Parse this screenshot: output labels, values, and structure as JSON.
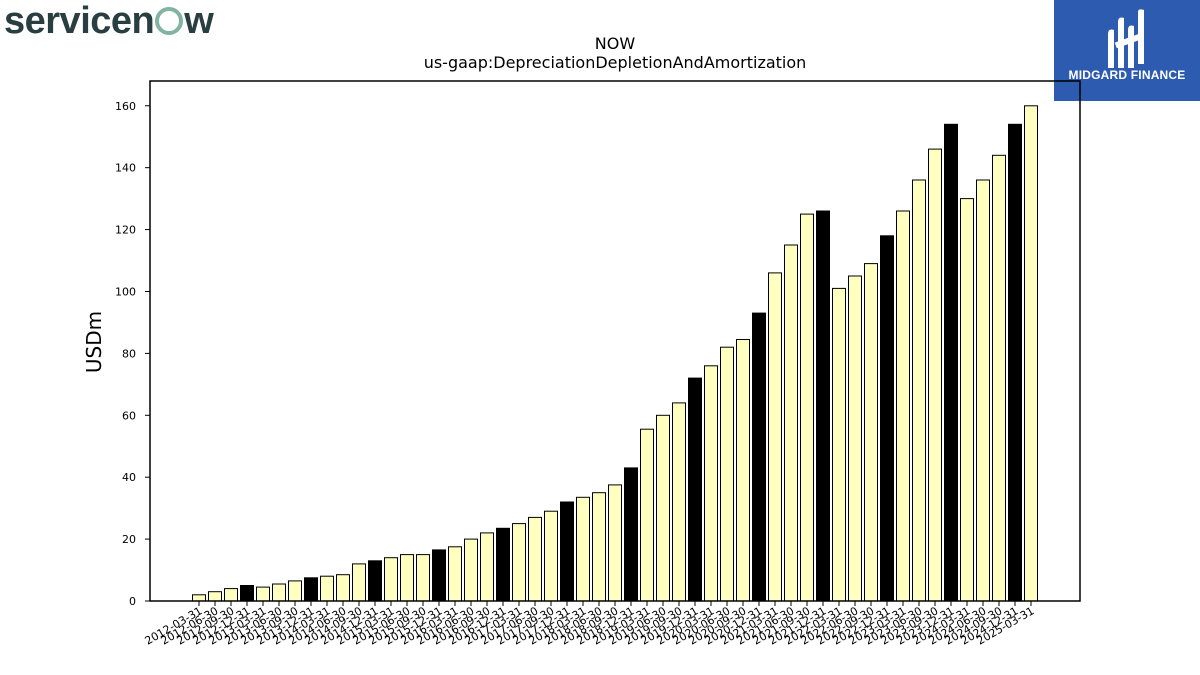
{
  "brand": {
    "left": "servicen",
    "right": "w"
  },
  "badge": {
    "text": "MIDGARD FINANCE",
    "mark_color": "#ffffff",
    "bg_color": "#2d5bb0"
  },
  "chart_data": {
    "type": "bar",
    "title": "NOW",
    "subtitle": "us-gaap:DepreciationDepletionAndAmortization",
    "xlabel": "",
    "ylabel": "USDm",
    "ylim": [
      0,
      168
    ],
    "yticks": [
      0,
      20,
      40,
      60,
      80,
      100,
      120,
      140,
      160
    ],
    "grid": false,
    "colors": {
      "quarter": "#ffffc0",
      "year_end": "#000000",
      "edge": "#000000"
    },
    "categories": [
      "2012-03-31",
      "2012-06-30",
      "2012-09-30",
      "2012-12-31",
      "2013-03-31",
      "2013-06-30",
      "2013-09-30",
      "2013-12-31",
      "2014-03-31",
      "2014-06-30",
      "2014-09-30",
      "2014-12-31",
      "2015-03-31",
      "2015-06-30",
      "2015-09-30",
      "2015-12-31",
      "2016-03-31",
      "2016-06-30",
      "2016-09-30",
      "2016-12-31",
      "2017-03-31",
      "2017-06-30",
      "2017-09-30",
      "2017-12-31",
      "2018-03-31",
      "2018-06-30",
      "2018-09-30",
      "2018-12-31",
      "2019-03-31",
      "2019-06-30",
      "2019-09-30",
      "2019-12-31",
      "2020-03-31",
      "2020-06-30",
      "2020-09-30",
      "2020-12-31",
      "2021-03-31",
      "2021-06-30",
      "2021-09-30",
      "2021-12-31",
      "2022-03-31",
      "2022-06-30",
      "2022-09-30",
      "2022-12-31",
      "2023-03-31",
      "2023-06-30",
      "2023-09-30",
      "2023-12-31",
      "2024-03-31",
      "2024-06-30",
      "2024-09-30",
      "2024-12-31",
      "2025-03-31"
    ],
    "values": [
      2,
      3,
      4,
      5,
      4.5,
      5.5,
      6.5,
      7.5,
      8,
      8.5,
      12,
      13,
      14,
      15,
      15,
      16.5,
      17.5,
      20,
      22,
      23.5,
      25,
      27,
      29,
      32,
      33.5,
      35,
      37.5,
      43,
      55.5,
      60,
      64,
      72,
      76,
      82,
      84.5,
      93,
      106,
      115,
      125,
      126,
      101,
      105,
      109,
      118,
      126,
      136,
      146,
      154,
      130,
      136,
      144,
      154,
      160
    ],
    "highlight": [
      false,
      false,
      false,
      true,
      false,
      false,
      false,
      true,
      false,
      false,
      false,
      true,
      false,
      false,
      false,
      true,
      false,
      false,
      false,
      true,
      false,
      false,
      false,
      true,
      false,
      false,
      false,
      true,
      false,
      false,
      false,
      true,
      false,
      false,
      false,
      true,
      false,
      false,
      false,
      true,
      false,
      false,
      false,
      true,
      false,
      false,
      false,
      true,
      false,
      false,
      false,
      true,
      false
    ]
  }
}
